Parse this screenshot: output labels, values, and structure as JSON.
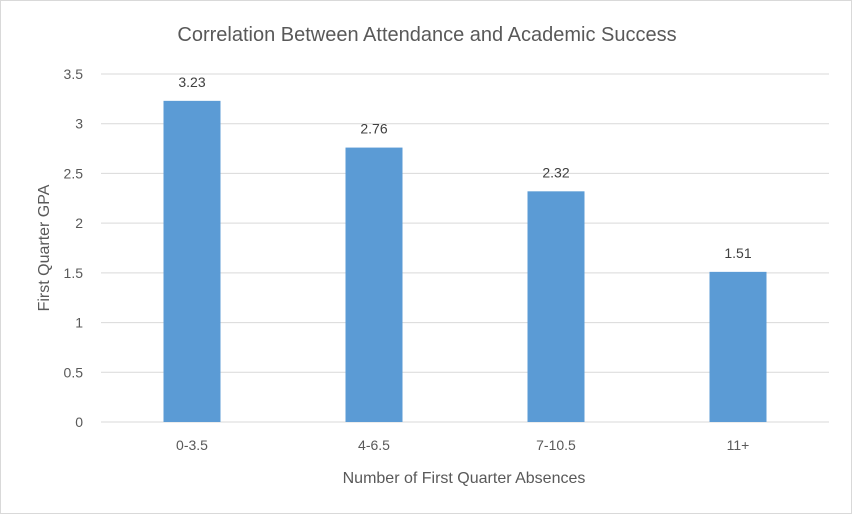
{
  "chart_data": {
    "type": "bar",
    "title": "Correlation Between Attendance and Academic Success",
    "xlabel": "Number of First Quarter Absences",
    "ylabel": "First Quarter GPA",
    "categories": [
      "0-3.5",
      "4-6.5",
      "7-10.5",
      "11+"
    ],
    "values": [
      3.23,
      2.76,
      2.32,
      1.51
    ],
    "ylim": [
      0,
      3.5
    ],
    "yticks": [
      "0",
      "0.5",
      "1",
      "1.5",
      "2",
      "2.5",
      "3",
      "3.5"
    ],
    "data_labels": [
      "3.23",
      "2.76",
      "2.32",
      "1.51"
    ],
    "grid": true,
    "legend": "none",
    "bar_color": "#5b9bd5",
    "grid_color": "#d9d9d9"
  }
}
